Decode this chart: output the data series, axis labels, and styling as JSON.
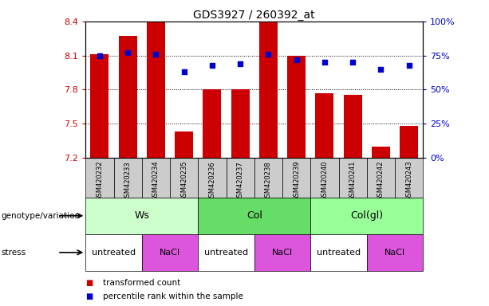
{
  "title": "GDS3927 / 260392_at",
  "samples": [
    "GSM420232",
    "GSM420233",
    "GSM420234",
    "GSM420235",
    "GSM420236",
    "GSM420237",
    "GSM420238",
    "GSM420239",
    "GSM420240",
    "GSM420241",
    "GSM420242",
    "GSM420243"
  ],
  "bar_values": [
    8.11,
    8.27,
    8.39,
    7.43,
    7.8,
    7.8,
    8.4,
    8.1,
    7.77,
    7.75,
    7.3,
    7.48
  ],
  "dot_values": [
    75,
    77,
    76,
    63,
    68,
    69,
    76,
    72,
    70,
    70,
    65,
    68
  ],
  "y_min": 7.2,
  "y_max": 8.4,
  "bar_color": "#cc0000",
  "dot_color": "#0000cc",
  "bar_bottom": 7.2,
  "yticks_left": [
    7.2,
    7.5,
    7.8,
    8.1,
    8.4
  ],
  "ytick_labels_left": [
    "7.2",
    "7.5",
    "7.8",
    "8.1",
    "8.4"
  ],
  "yticks_right": [
    0,
    25,
    50,
    75,
    100
  ],
  "ytick_labels_right": [
    "0%",
    "25%",
    "50%",
    "75%",
    "100%"
  ],
  "groups": [
    {
      "label": "Ws",
      "start": 0,
      "end": 3,
      "color": "#ccffcc"
    },
    {
      "label": "Col",
      "start": 4,
      "end": 7,
      "color": "#66dd66"
    },
    {
      "label": "Col(gl)",
      "start": 8,
      "end": 11,
      "color": "#99ff99"
    }
  ],
  "stresses": [
    {
      "label": "untreated",
      "start": 0,
      "end": 1,
      "color": "#ffffff"
    },
    {
      "label": "NaCl",
      "start": 2,
      "end": 3,
      "color": "#dd55dd"
    },
    {
      "label": "untreated",
      "start": 4,
      "end": 5,
      "color": "#ffffff"
    },
    {
      "label": "NaCl",
      "start": 6,
      "end": 7,
      "color": "#dd55dd"
    },
    {
      "label": "untreated",
      "start": 8,
      "end": 9,
      "color": "#ffffff"
    },
    {
      "label": "NaCl",
      "start": 10,
      "end": 11,
      "color": "#dd55dd"
    }
  ],
  "legend_items": [
    {
      "label": "transformed count",
      "color": "#cc0000"
    },
    {
      "label": "percentile rank within the sample",
      "color": "#0000cc"
    }
  ],
  "genotype_label": "genotype/variation",
  "stress_label": "stress",
  "sample_bg_color": "#cccccc",
  "sample_text_color": "#000000"
}
